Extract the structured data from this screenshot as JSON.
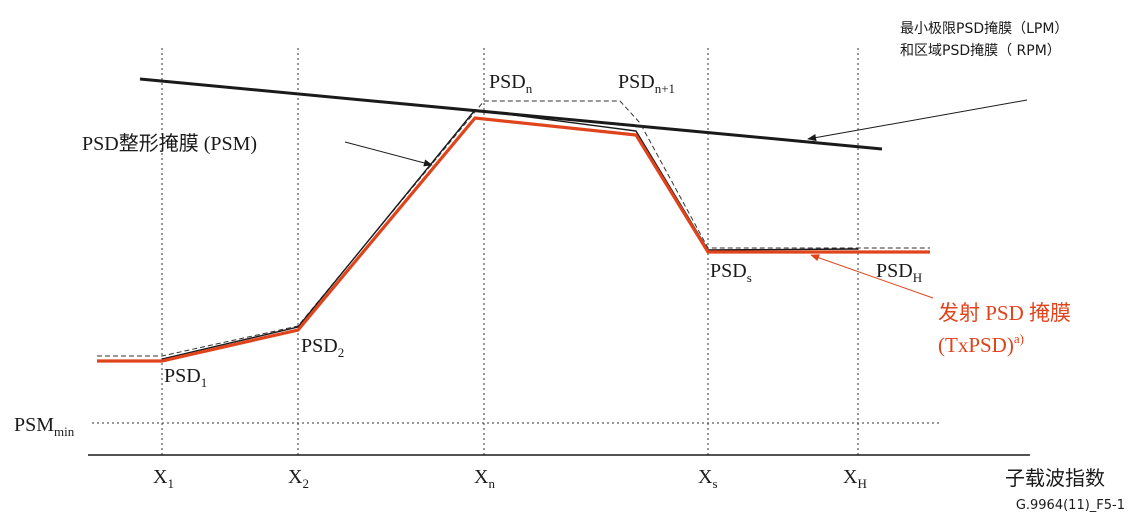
{
  "colors": {
    "txpsd": "#e0441c",
    "line": "#1a1a1a"
  },
  "x_ticks": [
    {
      "base": "X",
      "sub": "1"
    },
    {
      "base": "X",
      "sub": "2"
    },
    {
      "base": "X",
      "sub": "n"
    },
    {
      "base": "X",
      "sub": "s"
    },
    {
      "base": "X",
      "sub": "H"
    }
  ],
  "points": {
    "psd1": {
      "base": "PSD",
      "sub": "1"
    },
    "psd2": {
      "base": "PSD",
      "sub": "2"
    },
    "psdn": {
      "base": "PSD",
      "sub": "n"
    },
    "psdn1": {
      "base": "PSD",
      "sub": "n+1"
    },
    "psds": {
      "base": "PSD",
      "sub": "s"
    },
    "psdh": {
      "base": "PSD",
      "sub": "H"
    },
    "psmmin": {
      "base": "PSM",
      "sub": "min"
    }
  },
  "labels": {
    "psm": "PSD整形掩膜 (PSM)",
    "lpm_line1": "最小极限PSD掩膜（LPM）",
    "lpm_line2": "和区域PSD掩膜（ RPM）",
    "txpsd_line1": "发射 PSD 掩膜",
    "txpsd_line2": "(TxPSD)",
    "txpsd_sup": "a)",
    "x_axis": "子载波指数",
    "figure_id": "G.9964(11)_F5-1"
  }
}
